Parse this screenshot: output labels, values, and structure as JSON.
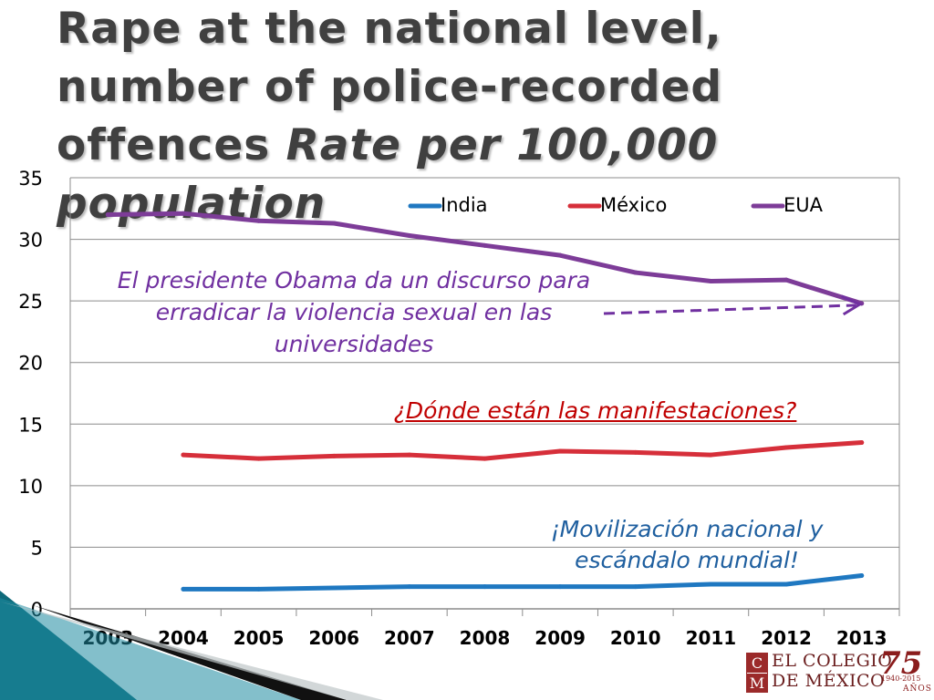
{
  "slide": {
    "title": "Rape at the national level, number of police-recorded offences",
    "title_italic": "Rate per 100,000 population"
  },
  "annotations": {
    "obama_note": "El presidente Obama da un discurso para erradicar la violencia sexual en las universidades",
    "manifestaciones_note": "¿Dónde están las manifestaciones?",
    "movilizacion_note": "¡Movilización nacional y escándalo mundial!"
  },
  "logo": {
    "mark_top": "C",
    "mark_bottom": "M",
    "line1": "EL COLEGIO",
    "line2": "DE MÉXICO",
    "anniversary": "75",
    "anniversary_years": "1940-2015",
    "anniversary_word": "AÑOS"
  },
  "chart_data": {
    "type": "line",
    "title": "",
    "xlabel": "",
    "ylabel": "",
    "x": [
      "2003",
      "2004",
      "2005",
      "2006",
      "2007",
      "2008",
      "2009",
      "2010",
      "2011",
      "2012",
      "2013"
    ],
    "ylim": [
      0,
      35
    ],
    "yticks": [
      0,
      5,
      10,
      15,
      20,
      25,
      30,
      35
    ],
    "grid": true,
    "legend_position": "top",
    "series": [
      {
        "name": "India",
        "color": "#1F78C1",
        "values": [
          null,
          1.6,
          1.6,
          1.7,
          1.8,
          1.8,
          1.8,
          1.8,
          2.0,
          2.0,
          2.7
        ]
      },
      {
        "name": "México",
        "color": "#D62F3A",
        "values": [
          null,
          12.5,
          12.2,
          12.4,
          12.5,
          12.2,
          12.8,
          12.7,
          12.5,
          13.1,
          13.5
        ]
      },
      {
        "name": "EUA",
        "color": "#7D3C98",
        "values": [
          32.0,
          32.1,
          31.5,
          31.3,
          30.3,
          29.5,
          28.7,
          27.3,
          26.6,
          26.7,
          24.8
        ]
      }
    ],
    "arrow": {
      "from_text": "obama_note",
      "to_x": "2013",
      "to_series": "EUA"
    }
  }
}
